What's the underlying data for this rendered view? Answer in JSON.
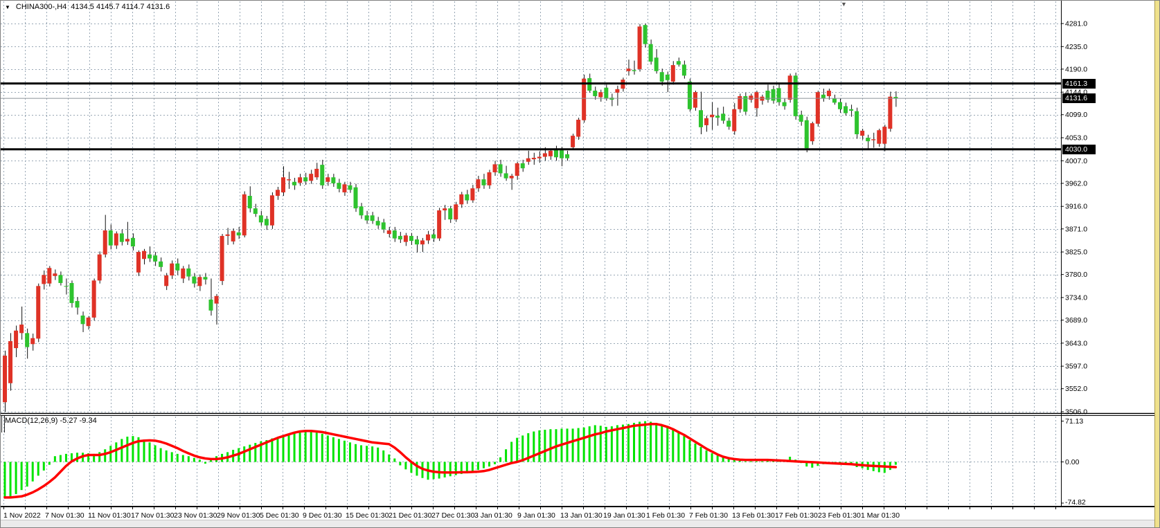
{
  "header": {
    "dropdown_icon": "▼",
    "symbol": "CHINA300-,H4",
    "ohlc": "4134.5 4145.7 4114.7 4131.6"
  },
  "badges": {
    "resistance": "4161.3",
    "current": "4131.6",
    "support": "4030.0"
  },
  "macd_panel": {
    "label": "MACD(12,26,9)",
    "values": "-5.27 -9.34",
    "axis_max": "71.13",
    "axis_zero": "0.00",
    "axis_min": "-74.82"
  },
  "chart_data": {
    "type": "candlestick",
    "symbol": "CHINA300-",
    "timeframe": "H4",
    "last_open": 4134.5,
    "last_high": 4145.7,
    "last_low": 4114.7,
    "last_close": 4131.6,
    "price_axis": {
      "max": 4281.0,
      "min": 3506.0,
      "ticks": [
        4281.0,
        4235.0,
        4190.0,
        4144.0,
        4099.0,
        4053.0,
        4007.0,
        3962.0,
        3916.0,
        3871.0,
        3825.0,
        3780.0,
        3734.0,
        3689.0,
        3643.0,
        3597.0,
        3552.0,
        3506.0
      ]
    },
    "time_axis": {
      "labels": [
        "1 Nov 2022",
        "7 Nov 01:30",
        "11 Nov 01:30",
        "17 Nov 01:30",
        "23 Nov 01:30",
        "29 Nov 01:30",
        "5 Dec 01:30",
        "9 Dec 01:30",
        "15 Dec 01:30",
        "21 Dec 01:30",
        "27 Dec 01:30",
        "3 Jan 01:30",
        "9 Jan 01:30",
        "13 Jan 01:30",
        "19 Jan 01:30",
        "1 Feb 01:30",
        "7 Feb 01:30",
        "13 Feb 01:30",
        "17 Feb 01:30",
        "23 Feb 01:30",
        "1 Mar 01:30"
      ]
    },
    "levels": [
      {
        "name": "resistance",
        "value": 4161.3
      },
      {
        "name": "current-price",
        "value": 4131.6
      },
      {
        "name": "support",
        "value": 4030.0
      }
    ],
    "candles": [
      [
        3525,
        3628,
        3506,
        3618
      ],
      [
        3563,
        3663,
        3548,
        3647
      ],
      [
        3633,
        3678,
        3615,
        3668
      ],
      [
        3663,
        3716,
        3650,
        3680
      ],
      [
        3663,
        3672,
        3612,
        3635
      ],
      [
        3641,
        3662,
        3628,
        3653
      ],
      [
        3652,
        3762,
        3645,
        3757
      ],
      [
        3761,
        3788,
        3750,
        3779
      ],
      [
        3762,
        3797,
        3756,
        3793
      ],
      [
        3777,
        3790,
        3769,
        3782
      ],
      [
        3779,
        3786,
        3758,
        3763
      ],
      [
        3757,
        3772,
        3740,
        3756
      ],
      [
        3763,
        3768,
        3714,
        3723
      ],
      [
        3727,
        3735,
        3700,
        3714
      ],
      [
        3698,
        3706,
        3665,
        3681
      ],
      [
        3677,
        3697,
        3670,
        3694
      ],
      [
        3694,
        3772,
        3688,
        3768
      ],
      [
        3768,
        3826,
        3762,
        3820
      ],
      [
        3820,
        3899,
        3814,
        3868
      ],
      [
        3868,
        3880,
        3830,
        3838
      ],
      [
        3838,
        3866,
        3831,
        3862
      ],
      [
        3862,
        3870,
        3838,
        3845
      ],
      [
        3846,
        3885,
        3839,
        3851
      ],
      [
        3853,
        3862,
        3828,
        3836
      ],
      [
        3784,
        3828,
        3777,
        3825
      ],
      [
        3811,
        3831,
        3800,
        3827
      ],
      [
        3820,
        3836,
        3805,
        3812
      ],
      [
        3818,
        3825,
        3797,
        3806
      ],
      [
        3806,
        3814,
        3786,
        3795
      ],
      [
        3757,
        3783,
        3749,
        3778
      ],
      [
        3778,
        3808,
        3771,
        3802
      ],
      [
        3802,
        3812,
        3779,
        3788
      ],
      [
        3772,
        3797,
        3763,
        3792
      ],
      [
        3792,
        3800,
        3768,
        3776
      ],
      [
        3776,
        3783,
        3754,
        3762
      ],
      [
        3757,
        3780,
        3747,
        3775
      ],
      [
        3775,
        3783,
        3760,
        3770
      ],
      [
        3730,
        3772,
        3698,
        3708
      ],
      [
        3722,
        3741,
        3680,
        3737
      ],
      [
        3767,
        3861,
        3759,
        3857
      ],
      [
        3857,
        3873,
        3839,
        3860
      ],
      [
        3846,
        3872,
        3840,
        3867
      ],
      [
        3864,
        3875,
        3851,
        3858
      ],
      [
        3858,
        3946,
        3854,
        3940
      ],
      [
        3937,
        3956,
        3904,
        3912
      ],
      [
        3912,
        3921,
        3895,
        3901
      ],
      [
        3898,
        3907,
        3877,
        3884
      ],
      [
        3891,
        3897,
        3869,
        3878
      ],
      [
        3878,
        3944,
        3871,
        3938
      ],
      [
        3937,
        3955,
        3929,
        3949
      ],
      [
        3944,
        3996,
        3937,
        3974
      ],
      [
        3968,
        3985,
        3951,
        3970
      ],
      [
        3965,
        3973,
        3949,
        3958
      ],
      [
        3963,
        3981,
        3957,
        3974
      ],
      [
        3974,
        3983,
        3959,
        3966
      ],
      [
        3967,
        3989,
        3961,
        3981
      ],
      [
        3974,
        4003,
        3969,
        3991
      ],
      [
        3999,
        4009,
        3951,
        3958
      ],
      [
        3965,
        3981,
        3957,
        3974
      ],
      [
        3974,
        3981,
        3955,
        3962
      ],
      [
        3963,
        3971,
        3944,
        3951
      ],
      [
        3944,
        3965,
        3937,
        3960
      ],
      [
        3958,
        3965,
        3943,
        3949
      ],
      [
        3954,
        3961,
        3905,
        3912
      ],
      [
        3916,
        3923,
        3891,
        3898
      ],
      [
        3898,
        3907,
        3881,
        3888
      ],
      [
        3898,
        3905,
        3881,
        3887
      ],
      [
        3887,
        3895,
        3871,
        3878
      ],
      [
        3884,
        3891,
        3863,
        3870
      ],
      [
        3861,
        3875,
        3854,
        3868
      ],
      [
        3868,
        3875,
        3845,
        3852
      ],
      [
        3857,
        3865,
        3843,
        3850
      ],
      [
        3845,
        3863,
        3837,
        3858
      ],
      [
        3857,
        3863,
        3839,
        3847
      ],
      [
        3850,
        3857,
        3824,
        3840
      ],
      [
        3840,
        3853,
        3825,
        3848
      ],
      [
        3848,
        3867,
        3841,
        3860
      ],
      [
        3860,
        3871,
        3845,
        3852
      ],
      [
        3852,
        3913,
        3847,
        3908
      ],
      [
        3908,
        3919,
        3889,
        3912
      ],
      [
        3912,
        3917,
        3883,
        3890
      ],
      [
        3890,
        3925,
        3885,
        3920
      ],
      [
        3920,
        3945,
        3913,
        3940
      ],
      [
        3940,
        3949,
        3921,
        3928
      ],
      [
        3928,
        3959,
        3923,
        3952
      ],
      [
        3952,
        3977,
        3945,
        3970
      ],
      [
        3970,
        3981,
        3951,
        3958
      ],
      [
        3958,
        3989,
        3951,
        3984
      ],
      [
        3984,
        4007,
        3977,
        4000
      ],
      [
        4000,
        4009,
        3975,
        3982
      ],
      [
        3982,
        3997,
        3967,
        3972
      ],
      [
        3972,
        3981,
        3949,
        3977
      ],
      [
        3977,
        4005,
        3969,
        4002
      ],
      [
        4002,
        4009,
        3985,
        3992
      ],
      [
        4005,
        4027,
        3999,
        4012
      ],
      [
        4010,
        4023,
        3999,
        4013
      ],
      [
        4012,
        4026,
        4003,
        4015
      ],
      [
        4015,
        4034,
        4007,
        4022
      ],
      [
        4016,
        4031,
        4009,
        4027
      ],
      [
        4030,
        4037,
        4007,
        4014
      ],
      [
        4028,
        4035,
        3996,
        4012
      ],
      [
        4020,
        4027,
        4007,
        4012
      ],
      [
        4034,
        4061,
        4029,
        4057
      ],
      [
        4055,
        4093,
        4049,
        4089
      ],
      [
        4088,
        4179,
        4083,
        4171
      ],
      [
        4172,
        4181,
        4143,
        4147
      ],
      [
        4147,
        4155,
        4129,
        4136
      ],
      [
        4134,
        4149,
        4125,
        4144
      ],
      [
        4153,
        4159,
        4127,
        4131
      ],
      [
        4133,
        4141,
        4116,
        4129
      ],
      [
        4143,
        4157,
        4117,
        4150
      ],
      [
        4151,
        4173,
        4145,
        4169
      ],
      [
        4186,
        4209,
        4177,
        4191
      ],
      [
        4188,
        4207,
        4179,
        4186
      ],
      [
        4190,
        4280,
        4185,
        4275
      ],
      [
        4278,
        4281,
        4233,
        4240
      ],
      [
        4240,
        4249,
        4199,
        4205
      ],
      [
        4213,
        4230,
        4181,
        4186
      ],
      [
        4184,
        4191,
        4157,
        4165
      ],
      [
        4179,
        4185,
        4144,
        4168
      ],
      [
        4165,
        4206,
        4159,
        4198
      ],
      [
        4206,
        4213,
        4195,
        4199
      ],
      [
        4199,
        4207,
        4171,
        4177
      ],
      [
        4165,
        4171,
        4105,
        4110
      ],
      [
        4113,
        4147,
        4107,
        4144
      ],
      [
        4108,
        4145,
        4060,
        4074
      ],
      [
        4078,
        4097,
        4065,
        4092
      ],
      [
        4094,
        4124,
        4069,
        4099
      ],
      [
        4097,
        4113,
        4077,
        4093
      ],
      [
        4101,
        4115,
        4081,
        4087
      ],
      [
        4087,
        4093,
        4069,
        4075
      ],
      [
        4066,
        4122,
        4059,
        4110
      ],
      [
        4110,
        4141,
        4103,
        4136
      ],
      [
        4136,
        4143,
        4099,
        4105
      ],
      [
        4129,
        4141,
        4123,
        4137
      ],
      [
        4112,
        4147,
        4095,
        4144
      ],
      [
        4127,
        4139,
        4119,
        4135
      ],
      [
        4147,
        4159,
        4123,
        4129
      ],
      [
        4150,
        4157,
        4121,
        4127
      ],
      [
        4152,
        4161,
        4117,
        4124
      ],
      [
        4124,
        4131,
        4109,
        4116
      ],
      [
        4129,
        4181,
        4123,
        4177
      ],
      [
        4177,
        4183,
        4089,
        4096
      ],
      [
        4099,
        4107,
        4077,
        4085
      ],
      [
        4088,
        4095,
        4024,
        4032
      ],
      [
        4046,
        4085,
        4039,
        4082
      ],
      [
        4081,
        4147,
        4075,
        4144
      ],
      [
        4139,
        4151,
        4125,
        4132
      ],
      [
        4136,
        4151,
        4129,
        4147
      ],
      [
        4131,
        4139,
        4119,
        4123
      ],
      [
        4124,
        4131,
        4103,
        4110
      ],
      [
        4116,
        4123,
        4097,
        4102
      ],
      [
        4110,
        4119,
        4095,
        4107
      ],
      [
        4106,
        4113,
        4051,
        4060
      ],
      [
        4057,
        4071,
        4049,
        4067
      ],
      [
        4053,
        4059,
        4031,
        4046
      ],
      [
        4048,
        4063,
        4033,
        4050
      ],
      [
        4041,
        4071,
        4035,
        4068
      ],
      [
        4041,
        4079,
        4026,
        4075
      ],
      [
        4071,
        4145,
        4065,
        4135
      ],
      [
        4134.5,
        4145.7,
        4114.7,
        4131.6
      ]
    ],
    "macd": {
      "label": "MACD(12,26,9)",
      "macd_value": -5.27,
      "signal_value": -9.34,
      "axis": {
        "max": 71.13,
        "zero": 0.0,
        "min": -74.82
      },
      "histogram": [
        -64,
        -62,
        -56,
        -49,
        -43,
        -34,
        -24,
        -15,
        -5,
        10,
        12,
        14,
        15,
        16,
        16,
        15,
        14,
        17,
        22,
        28,
        34,
        40,
        44,
        45,
        43,
        39,
        34,
        29,
        24,
        20,
        17,
        14,
        12,
        10,
        7,
        4,
        -3,
        6,
        10,
        14,
        17,
        21,
        24,
        27,
        30,
        33,
        36,
        38,
        41,
        43,
        46,
        48,
        50,
        51,
        52,
        52,
        51,
        49,
        46,
        43,
        40,
        37,
        34,
        31,
        29,
        28,
        27,
        25,
        20,
        13,
        6,
        -6,
        -13,
        -19,
        -24,
        -28,
        -31,
        -30,
        -29,
        -27,
        -25,
        -23,
        -21,
        -19,
        -17,
        -14,
        -11,
        -8,
        -4,
        8,
        22,
        35,
        42,
        46,
        50,
        53,
        55,
        56,
        57,
        57,
        58,
        58,
        58,
        59,
        60,
        62,
        64,
        63,
        61,
        62,
        64,
        65,
        66,
        68,
        70,
        71,
        70,
        68,
        65,
        61,
        56,
        51,
        45,
        38,
        32,
        26,
        20,
        15,
        11,
        8,
        5,
        3,
        2,
        1,
        1,
        1,
        1,
        2,
        2,
        3,
        4,
        9,
        4,
        -2,
        -8,
        -10,
        -7,
        -4,
        -2,
        -2,
        -3,
        -4,
        -5,
        -9,
        -11,
        -14,
        -16,
        -18,
        -19,
        -14,
        -5
      ],
      "signal": [
        -62,
        -62,
        -61,
        -60,
        -57,
        -53,
        -48,
        -42,
        -35,
        -27,
        -17,
        -7,
        1,
        6,
        10,
        12,
        12,
        12,
        14,
        17,
        21,
        25,
        29,
        33,
        36,
        37,
        37.5,
        37,
        35,
        32,
        28,
        24,
        19,
        15,
        11,
        8,
        6,
        5,
        5,
        6,
        8,
        11,
        14,
        18,
        22,
        26,
        30,
        34,
        38,
        42,
        45,
        48,
        51,
        53,
        54,
        54,
        53,
        52,
        50,
        48,
        46,
        44,
        42,
        40,
        38,
        36,
        34,
        33,
        32,
        31,
        25,
        17,
        8,
        0,
        -7,
        -12,
        -15,
        -17,
        -18,
        -18.5,
        -18.5,
        -18.5,
        -18,
        -18,
        -17.5,
        -17,
        -16,
        -14,
        -11,
        -8,
        -5,
        -2,
        0,
        3,
        7,
        11,
        15,
        19,
        23,
        27,
        30,
        33,
        36,
        39,
        42,
        45,
        48,
        50,
        53,
        55,
        57,
        59,
        61,
        63,
        64,
        65,
        66,
        66,
        64,
        61,
        57,
        52,
        47,
        41,
        35,
        29,
        23,
        18,
        13,
        9,
        6.5,
        5,
        4,
        3.5,
        3.5,
        3.5,
        3.5,
        3.5,
        3,
        2.5,
        2,
        1.5,
        1,
        0.5,
        0,
        -0.5,
        -1,
        -1.5,
        -2,
        -2.5,
        -3,
        -3.5,
        -4,
        -5,
        -5.5,
        -6.5,
        -7,
        -7.5,
        -8,
        -8.5,
        -9
      ]
    },
    "grid": true,
    "colors": {
      "bull_body": "#df3226",
      "bear_body": "#2ec32e",
      "wick": "#111111",
      "macd_hist": "#00e400",
      "macd_signal": "#ff0000",
      "level_line": "#000000",
      "current_price_line": "#8a9096",
      "grid": "#97a6b4",
      "badge_bg": "#000000",
      "badge_text": "#ffffff"
    }
  }
}
